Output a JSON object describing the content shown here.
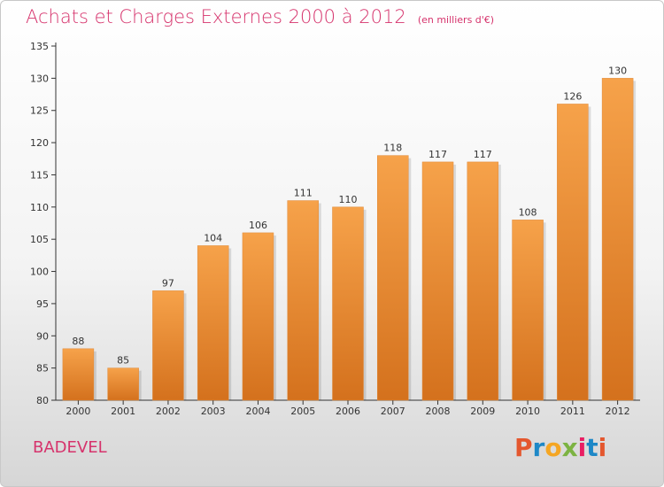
{
  "header": {
    "title": "Achats et Charges Externes 2000 à 2012",
    "subtitle": "(en milliers d'€)"
  },
  "footer": {
    "commune": "BADEVEL",
    "logo_text": "Proxiti",
    "logo_colors": [
      "#e4572e",
      "#1e88c7",
      "#f5a623",
      "#7cb342",
      "#e91e63",
      "#1e88c7",
      "#e4572e"
    ]
  },
  "colors": {
    "title": "#d6336c",
    "bar": "#f0932f",
    "bar_dark": "#d4711d"
  },
  "chart_data": {
    "type": "bar",
    "categories": [
      "2000",
      "2001",
      "2002",
      "2003",
      "2004",
      "2005",
      "2006",
      "2007",
      "2008",
      "2009",
      "2010",
      "2011",
      "2012"
    ],
    "values": [
      88,
      85,
      97,
      104,
      106,
      111,
      110,
      118,
      117,
      117,
      108,
      126,
      130
    ],
    "ylim": [
      80,
      135
    ],
    "yticks": [
      80,
      85,
      90,
      95,
      100,
      105,
      110,
      115,
      120,
      125,
      130,
      135
    ],
    "grid": false,
    "data_labels": true
  }
}
